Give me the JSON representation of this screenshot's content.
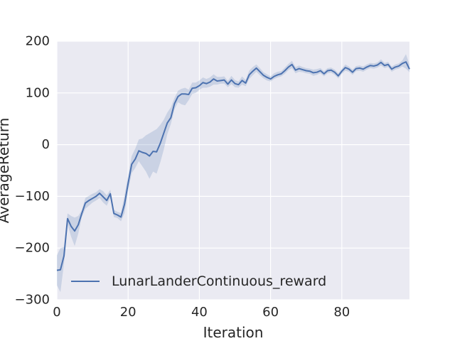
{
  "chart_data": {
    "type": "line",
    "title": "",
    "xlabel": "Iteration",
    "ylabel": "AverageReturn",
    "xlim": [
      0,
      99
    ],
    "ylim": [
      -300,
      200
    ],
    "xticks": [
      0,
      20,
      40,
      60,
      80
    ],
    "yticks": [
      -300,
      -200,
      -100,
      0,
      100,
      200
    ],
    "xtick_labels": [
      "0",
      "20",
      "40",
      "60",
      "80"
    ],
    "ytick_labels": [
      "−300",
      "−200",
      "−100",
      "0",
      "100",
      "200"
    ],
    "grid": true,
    "legend_position": "lower-left",
    "colors": {
      "background": "#eaeaf2",
      "grid": "#ffffff",
      "line": "#4c72b0",
      "band": "#4c72b0"
    },
    "series": [
      {
        "name": "LunarLanderContinuous_reward",
        "x": [
          0,
          1,
          2,
          3,
          4,
          5,
          6,
          7,
          8,
          9,
          10,
          11,
          12,
          13,
          14,
          15,
          16,
          17,
          18,
          19,
          20,
          21,
          22,
          23,
          24,
          25,
          26,
          27,
          28,
          29,
          30,
          31,
          32,
          33,
          34,
          35,
          36,
          37,
          38,
          39,
          40,
          41,
          42,
          43,
          44,
          45,
          46,
          47,
          48,
          49,
          50,
          51,
          52,
          53,
          54,
          55,
          56,
          57,
          58,
          59,
          60,
          61,
          62,
          63,
          64,
          65,
          66,
          67,
          68,
          69,
          70,
          71,
          72,
          73,
          74,
          75,
          76,
          77,
          78,
          79,
          80,
          81,
          82,
          83,
          84,
          85,
          86,
          87,
          88,
          89,
          90,
          91,
          92,
          93,
          94,
          95,
          96,
          97,
          98,
          99
        ],
        "y": [
          -243,
          -242,
          -215,
          -143,
          -158,
          -167,
          -155,
          -133,
          -113,
          -108,
          -104,
          -100,
          -94,
          -101,
          -108,
          -95,
          -133,
          -136,
          -140,
          -115,
          -75,
          -38,
          -28,
          -12,
          -15,
          -17,
          -22,
          -13,
          -14,
          2,
          22,
          42,
          52,
          79,
          93,
          98,
          98,
          97,
          109,
          110,
          114,
          120,
          118,
          121,
          127,
          123,
          124,
          125,
          117,
          125,
          118,
          116,
          124,
          119,
          135,
          142,
          148,
          141,
          134,
          130,
          127,
          132,
          135,
          137,
          143,
          150,
          155,
          144,
          147,
          145,
          143,
          142,
          139,
          140,
          143,
          137,
          143,
          144,
          140,
          133,
          142,
          149,
          146,
          140,
          147,
          148,
          146,
          150,
          153,
          152,
          154,
          159,
          153,
          155,
          146,
          150,
          152,
          157,
          160,
          146
        ],
        "lower": [
          -272,
          -285,
          -230,
          -155,
          -178,
          -196,
          -172,
          -140,
          -124,
          -118,
          -112,
          -108,
          -103,
          -112,
          -118,
          -103,
          -140,
          -142,
          -148,
          -132,
          -90,
          -55,
          -45,
          -32,
          -42,
          -52,
          -66,
          -52,
          -56,
          -35,
          -10,
          20,
          40,
          68,
          82,
          78,
          76,
          86,
          98,
          100,
          106,
          110,
          110,
          112,
          116,
          116,
          118,
          118,
          111,
          117,
          111,
          110,
          116,
          113,
          127,
          134,
          141,
          134,
          128,
          124,
          122,
          127,
          130,
          132,
          137,
          144,
          148,
          138,
          141,
          140,
          138,
          137,
          133,
          135,
          138,
          132,
          138,
          139,
          135,
          128,
          137,
          143,
          141,
          135,
          142,
          143,
          141,
          145,
          148,
          147,
          149,
          153,
          148,
          150,
          141,
          145,
          147,
          151,
          147,
          140
        ],
        "upper": [
          -214,
          -200,
          -198,
          -133,
          -138,
          -141,
          -138,
          -127,
          -103,
          -99,
          -95,
          -92,
          -86,
          -90,
          -98,
          -87,
          -126,
          -130,
          -132,
          -98,
          -60,
          -22,
          -8,
          10,
          12,
          18,
          22,
          26,
          30,
          38,
          48,
          62,
          72,
          90,
          104,
          108,
          110,
          106,
          120,
          120,
          124,
          130,
          127,
          130,
          136,
          131,
          131,
          132,
          123,
          133,
          125,
          122,
          132,
          125,
          143,
          150,
          155,
          148,
          140,
          136,
          132,
          138,
          141,
          142,
          149,
          156,
          162,
          150,
          153,
          150,
          148,
          147,
          145,
          146,
          148,
          142,
          148,
          149,
          145,
          138,
          147,
          155,
          151,
          145,
          152,
          153,
          151,
          155,
          158,
          157,
          159,
          165,
          158,
          160,
          151,
          155,
          157,
          163,
          175,
          155
        ]
      }
    ]
  }
}
